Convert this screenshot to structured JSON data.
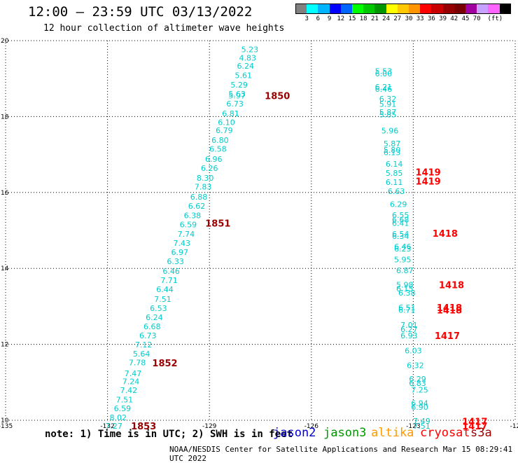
{
  "header": {
    "title": "12:00 – 23:59 UTC 03/13/2022",
    "subtitle": "12 hour collection of altimeter wave heights"
  },
  "colorbar": {
    "ticks": [
      "3",
      "6",
      "9",
      "12",
      "15",
      "18",
      "21",
      "24",
      "27",
      "30",
      "33",
      "36",
      "39",
      "42",
      "45",
      "70"
    ],
    "unit": "(ft)",
    "colors": [
      "#808080",
      "#00ffff",
      "#00b4ff",
      "#0000ff",
      "#0064ff",
      "#00ff00",
      "#00c800",
      "#009600",
      "#ffff00",
      "#ffc800",
      "#ff9600",
      "#ff0000",
      "#c80000",
      "#960000",
      "#780000",
      "#a000a0",
      "#c8a0ff",
      "#ff64ff",
      "#000000"
    ]
  },
  "footer": {
    "note": "note: 1) Time is in UTC; 2) SWH is in feet",
    "missions": [
      {
        "name": "jason2",
        "color": "#0000cc"
      },
      {
        "name": "jason3",
        "color": "#009900"
      },
      {
        "name": "altika",
        "color": "#ff9900"
      },
      {
        "name": "cryosat",
        "color": "#ff0000"
      },
      {
        "name": "s3a",
        "color": "#990000"
      }
    ],
    "credit": "NOAA/NESDIS Center for Satellite Applications and Research    Mar 15 08:29:41 UTC 2022"
  },
  "chart_data": {
    "type": "scatter",
    "xlim": [
      -135,
      -123
    ],
    "ylim": [
      10,
      20
    ],
    "x_ticks": [
      "-135",
      "-132",
      "-129",
      "-126",
      "-123",
      "-12"
    ],
    "y_ticks": [
      "20",
      "18",
      "16",
      "14",
      "12",
      "10"
    ],
    "value_color": "#00cccc",
    "time_colors": {
      "s3a": "#990000",
      "cryosat": "#ff0000"
    },
    "tracks": [
      {
        "values": [
          [
            -129.25,
            19.77,
            "5.23"
          ],
          [
            -129.3,
            19.55,
            "4.83"
          ],
          [
            -129.35,
            19.34,
            "6.24"
          ],
          [
            -129.4,
            19.09,
            "5.61"
          ],
          [
            -129.5,
            18.84,
            "5.29"
          ],
          [
            -129.55,
            18.6,
            "5.63"
          ],
          [
            -129.55,
            18.55,
            "5.97"
          ],
          [
            -129.6,
            18.34,
            "6.73"
          ],
          [
            -129.7,
            18.08,
            "6.81"
          ],
          [
            -129.8,
            17.85,
            "6.10"
          ],
          [
            -129.85,
            17.64,
            "6.79"
          ],
          [
            -129.95,
            17.38,
            "6.80"
          ],
          [
            -130.0,
            17.15,
            "6.58"
          ],
          [
            -130.1,
            16.88,
            "6.96"
          ],
          [
            -130.2,
            16.64,
            "6.26"
          ],
          [
            -130.3,
            16.38,
            "8.30"
          ],
          [
            -130.35,
            16.15,
            "7.83"
          ],
          [
            -130.45,
            15.89,
            "6.88"
          ],
          [
            -130.5,
            15.65,
            "6.62"
          ],
          [
            -130.6,
            15.4,
            "6.38"
          ],
          [
            -130.7,
            15.16,
            "6.59"
          ],
          [
            -130.75,
            14.91,
            "7.74"
          ],
          [
            -130.85,
            14.67,
            "7.43"
          ],
          [
            -130.9,
            14.43,
            "6.97"
          ],
          [
            -131.0,
            14.19,
            "6.33"
          ],
          [
            -131.1,
            13.93,
            "6.46"
          ],
          [
            -131.15,
            13.69,
            "7.71"
          ],
          [
            -131.25,
            13.45,
            "6.44"
          ],
          [
            -131.3,
            13.19,
            "7.51"
          ],
          [
            -131.4,
            12.95,
            "6.53"
          ],
          [
            -131.5,
            12.71,
            "6.24"
          ],
          [
            -131.55,
            12.47,
            "6.68"
          ],
          [
            -131.65,
            12.23,
            "6.73"
          ],
          [
            -131.75,
            11.99,
            "7.12"
          ],
          [
            -131.8,
            11.75,
            "5.64"
          ],
          [
            -131.9,
            11.52,
            "7.78"
          ],
          [
            -132.0,
            11.24,
            "7.47"
          ],
          [
            -132.05,
            11.02,
            "7.24"
          ],
          [
            -132.1,
            10.79,
            "7.42"
          ],
          [
            -132.2,
            10.54,
            "7.51"
          ],
          [
            -132.25,
            10.31,
            "6.59"
          ],
          [
            -132.35,
            10.07,
            "8.02"
          ],
          [
            -132.45,
            9.85,
            "7.27"
          ]
        ],
        "times": [
          {
            "x": -128.6,
            "y": 18.55,
            "label": "1850",
            "mission": "s3a"
          },
          {
            "x": -130.0,
            "y": 15.19,
            "label": "1851",
            "mission": "s3a"
          },
          {
            "x": -131.25,
            "y": 11.51,
            "label": "1852",
            "mission": "s3a"
          },
          {
            "x": -131.75,
            "y": 9.85,
            "label": "1853",
            "mission": "s3a"
          }
        ]
      },
      {
        "values": [
          [
            -126.1,
            19.2,
            "5.53"
          ],
          [
            -126.1,
            19.13,
            "6.00"
          ],
          [
            -126.1,
            18.78,
            "6.21"
          ],
          [
            -126.1,
            18.73,
            "6.46"
          ],
          [
            -126.0,
            18.47,
            "6.32"
          ],
          [
            -126.0,
            18.33,
            "5.91"
          ],
          [
            -126.0,
            18.12,
            "5.87"
          ],
          [
            -126.0,
            18.05,
            "5.85"
          ],
          [
            -125.95,
            17.63,
            "5.96"
          ],
          [
            -125.9,
            17.29,
            "5.87"
          ],
          [
            -125.9,
            17.12,
            "5.80"
          ],
          [
            -125.9,
            17.06,
            "6.13"
          ],
          [
            -125.85,
            16.75,
            "6.14"
          ],
          [
            -125.85,
            16.51,
            "5.85"
          ],
          [
            -125.85,
            16.27,
            "6.11"
          ],
          [
            -125.8,
            16.03,
            "6.63"
          ],
          [
            -125.75,
            15.69,
            "6.29"
          ],
          [
            -125.7,
            15.41,
            "6.55"
          ],
          [
            -125.7,
            15.29,
            "6.68"
          ],
          [
            -125.7,
            15.19,
            "6.41"
          ],
          [
            -125.7,
            14.91,
            "6.54"
          ],
          [
            -125.7,
            14.85,
            "6.34"
          ],
          [
            -125.65,
            14.58,
            "6.46"
          ],
          [
            -125.65,
            14.52,
            "6.23"
          ],
          [
            -125.65,
            14.23,
            "5.95"
          ],
          [
            -125.6,
            13.95,
            "6.87"
          ],
          [
            -125.6,
            13.57,
            "5.98"
          ],
          [
            -125.6,
            13.47,
            "6.15"
          ],
          [
            -125.55,
            13.36,
            "6.38"
          ],
          [
            -125.55,
            12.97,
            "6.51"
          ],
          [
            -125.55,
            12.91,
            "6.71"
          ],
          [
            -125.5,
            12.51,
            "7.01"
          ],
          [
            -125.5,
            12.4,
            "6.27"
          ],
          [
            -125.5,
            12.23,
            "6.93"
          ],
          [
            -125.4,
            11.84,
            "6.03"
          ],
          [
            -125.35,
            11.45,
            "6.32"
          ],
          [
            -125.3,
            11.09,
            "6.29"
          ],
          [
            -125.3,
            10.98,
            "6.83"
          ],
          [
            -125.25,
            10.8,
            "7.25"
          ],
          [
            -125.25,
            10.45,
            "6.94"
          ],
          [
            -125.25,
            10.35,
            "6.90"
          ],
          [
            -125.2,
            9.98,
            "7.49"
          ],
          [
            -125.2,
            9.85,
            "7.51"
          ]
        ],
        "times": [
          {
            "x": -125.05,
            "y": 16.54,
            "label": "1419",
            "mission": "cryosat"
          },
          {
            "x": -125.05,
            "y": 16.3,
            "label": "1419",
            "mission": "cryosat"
          },
          {
            "x": -124.65,
            "y": 14.93,
            "label": "1418",
            "mission": "cryosat"
          },
          {
            "x": -124.5,
            "y": 13.57,
            "label": "1418",
            "mission": "cryosat"
          },
          {
            "x": -124.55,
            "y": 12.97,
            "label": "1418",
            "mission": "cryosat"
          },
          {
            "x": -124.55,
            "y": 12.91,
            "label": "1418",
            "mission": "cryosat"
          },
          {
            "x": -124.6,
            "y": 12.23,
            "label": "1417",
            "mission": "cryosat"
          },
          {
            "x": -123.95,
            "y": 9.97,
            "label": "1417",
            "mission": "cryosat"
          },
          {
            "x": -123.95,
            "y": 9.85,
            "label": "1417",
            "mission": "cryosat"
          }
        ]
      }
    ]
  }
}
